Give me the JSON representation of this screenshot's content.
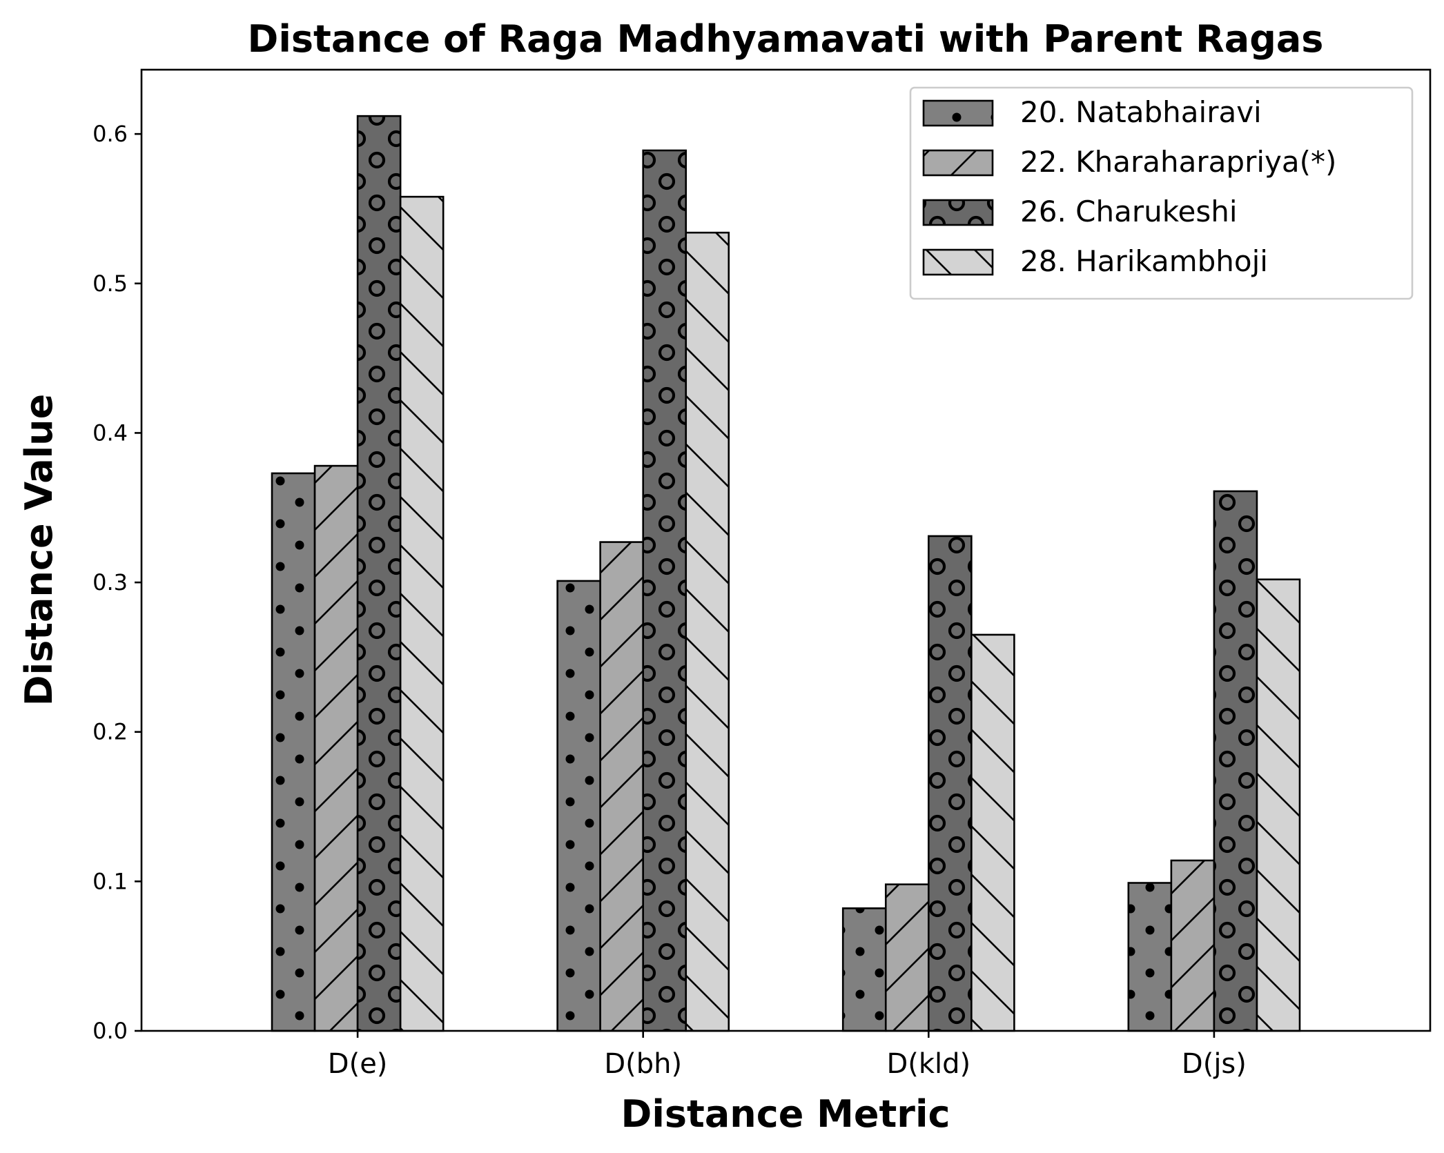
{
  "chart_data": {
    "type": "bar",
    "title": "Distance of Raga Madhyamavati with Parent Ragas",
    "xlabel": "Distance Metric",
    "ylabel": "Distance Value",
    "categories": [
      "D(e)",
      "D(bh)",
      "D(kld)",
      "D(js)"
    ],
    "ylim": [
      0,
      0.643
    ],
    "yticks": [
      0.0,
      0.1,
      0.2,
      0.3,
      0.4,
      0.5,
      0.6
    ],
    "ytick_labels": [
      "0.0",
      "0.1",
      "0.2",
      "0.3",
      "0.4",
      "0.5",
      "0.6"
    ],
    "grid": false,
    "legend_position": "top-right",
    "series": [
      {
        "name": "20. Natabhairavi",
        "values": [
          0.373,
          0.301,
          0.082,
          0.099
        ],
        "color": "#808080",
        "pattern": "dots"
      },
      {
        "name": "22. Kharaharapriya(*)",
        "values": [
          0.378,
          0.327,
          0.098,
          0.114
        ],
        "color": "#a9a9a9",
        "pattern": "forward-hatch"
      },
      {
        "name": "26. Charukeshi",
        "values": [
          0.612,
          0.589,
          0.331,
          0.361
        ],
        "color": "#696969",
        "pattern": "circles"
      },
      {
        "name": "28. Harikambhoji",
        "values": [
          0.558,
          0.534,
          0.265,
          0.302
        ],
        "color": "#d3d3d3",
        "pattern": "back-hatch"
      }
    ]
  }
}
